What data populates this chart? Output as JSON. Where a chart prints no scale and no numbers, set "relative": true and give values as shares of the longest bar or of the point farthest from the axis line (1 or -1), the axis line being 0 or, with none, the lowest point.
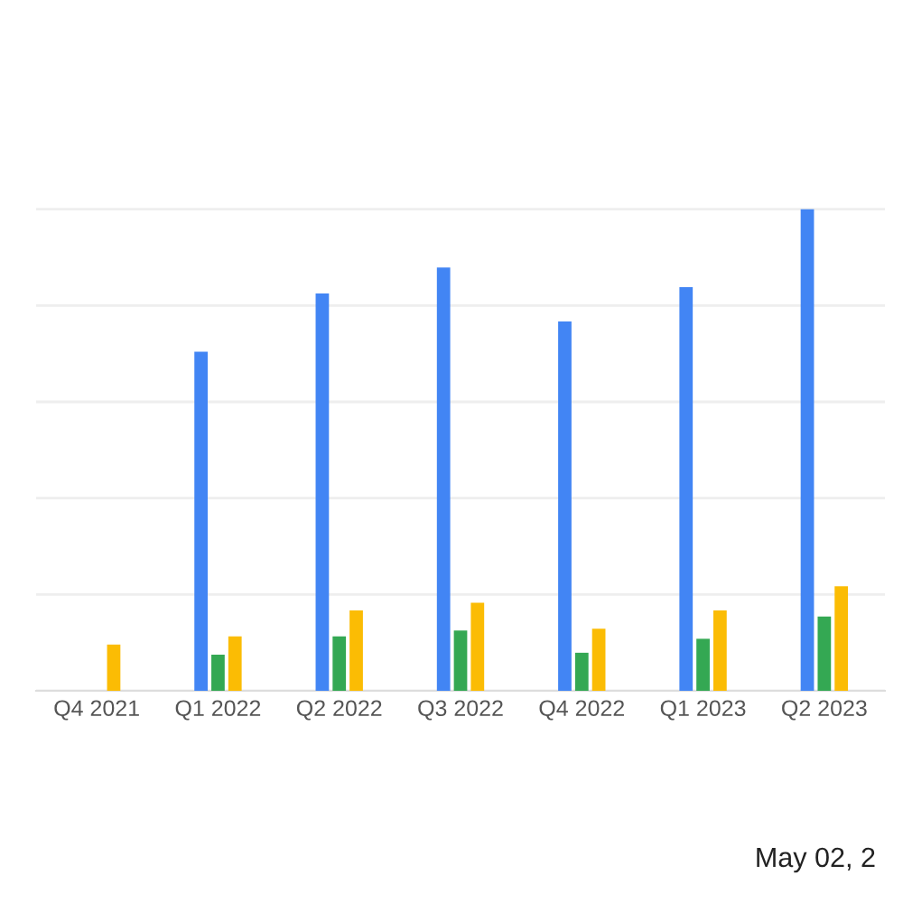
{
  "chart_data": {
    "type": "bar",
    "relative": true,
    "grid": "y",
    "categories": [
      "Q4 2021",
      "Q1 2022",
      "Q2 2022",
      "Q3 2022",
      "Q4 2022",
      "Q1 2023",
      "Q2 2023"
    ],
    "series": [
      {
        "color": "#4285f4",
        "values": [
          null,
          0.704,
          0.825,
          0.879,
          0.767,
          0.838,
          1
        ]
      },
      {
        "color": "#34a853",
        "values": [
          null,
          0.075,
          0.113,
          0.125,
          0.079,
          0.108,
          0.154
        ]
      },
      {
        "color": "#fbbc04",
        "values": [
          0.096,
          0.113,
          0.167,
          0.183,
          0.129,
          0.167,
          0.217
        ]
      }
    ],
    "annotations": [
      "May 02, 2"
    ]
  }
}
